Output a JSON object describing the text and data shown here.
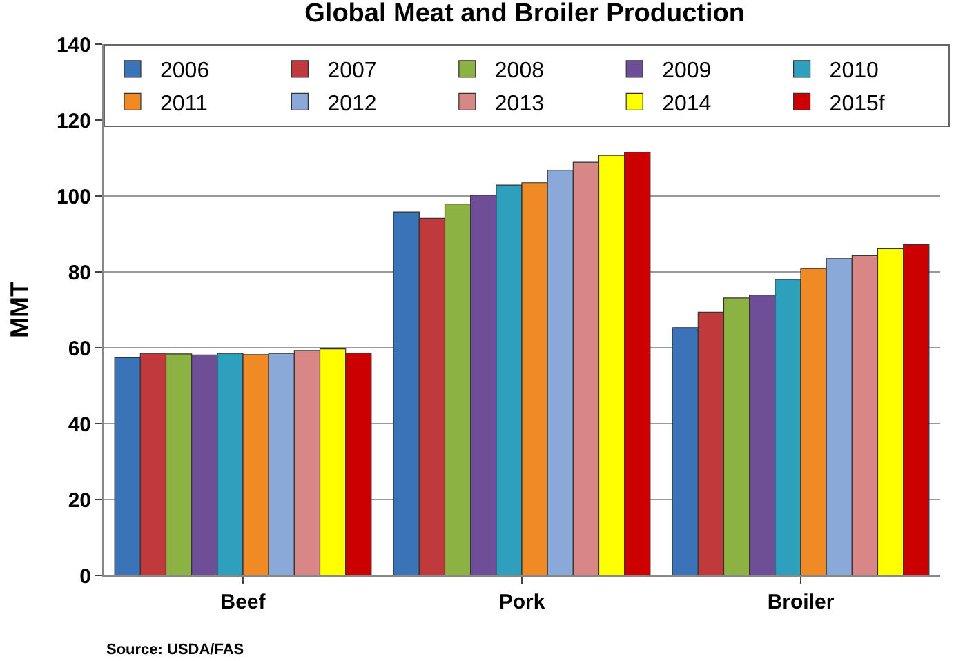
{
  "chart_data": {
    "type": "bar",
    "title": "Global Meat and Broiler Production",
    "ylabel": "MMT",
    "categories": [
      "Beef",
      "Pork",
      "Broiler"
    ],
    "series": [
      {
        "name": "2006",
        "color": "#3a73b8",
        "values": [
          57.4,
          95.8,
          65.3
        ]
      },
      {
        "name": "2007",
        "color": "#c0393b",
        "values": [
          58.5,
          94.1,
          69.4
        ]
      },
      {
        "name": "2008",
        "color": "#8db244",
        "values": [
          58.4,
          97.9,
          73.1
        ]
      },
      {
        "name": "2009",
        "color": "#6f4e98",
        "values": [
          58.1,
          100.2,
          73.9
        ]
      },
      {
        "name": "2010",
        "color": "#2ea0bd",
        "values": [
          58.5,
          102.9,
          78.0
        ]
      },
      {
        "name": "2011",
        "color": "#f08a24",
        "values": [
          58.2,
          103.5,
          80.9
        ]
      },
      {
        "name": "2012",
        "color": "#8aa8d8",
        "values": [
          58.5,
          106.8,
          83.5
        ]
      },
      {
        "name": "2013",
        "color": "#d98786",
        "values": [
          59.3,
          108.9,
          84.3
        ]
      },
      {
        "name": "2014",
        "color": "#ffff00",
        "values": [
          59.7,
          110.7,
          86.1
        ]
      },
      {
        "name": "2015f",
        "color": "#cc0000",
        "values": [
          58.6,
          111.5,
          87.2
        ]
      }
    ],
    "ylim": [
      0,
      140
    ],
    "yticks": [
      0,
      20,
      40,
      60,
      80,
      100,
      120,
      140
    ],
    "grid": "y",
    "legend": "top left",
    "annotations": [
      "Source: USDA/FAS"
    ]
  }
}
